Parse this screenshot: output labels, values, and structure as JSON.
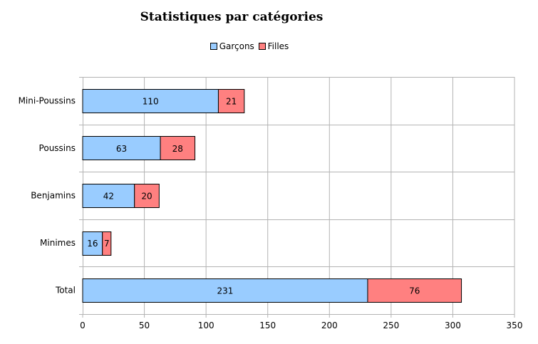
{
  "chart_data": {
    "type": "bar",
    "orientation": "horizontal",
    "stacked": true,
    "title": "Statistiques par catégories",
    "categories": [
      "Mini-Poussins",
      "Poussins",
      "Benjamins",
      "Minimes",
      "Total"
    ],
    "series": [
      {
        "name": "Garçons",
        "values": [
          110,
          63,
          42,
          16,
          231
        ],
        "color": "#99ccff"
      },
      {
        "name": "Filles",
        "values": [
          21,
          28,
          20,
          7,
          76
        ],
        "color": "#ff8080"
      }
    ],
    "xlim": [
      0,
      350
    ],
    "xticks": [
      0,
      50,
      100,
      150,
      200,
      250,
      300,
      350
    ],
    "grid": true,
    "legend_position": "top"
  }
}
